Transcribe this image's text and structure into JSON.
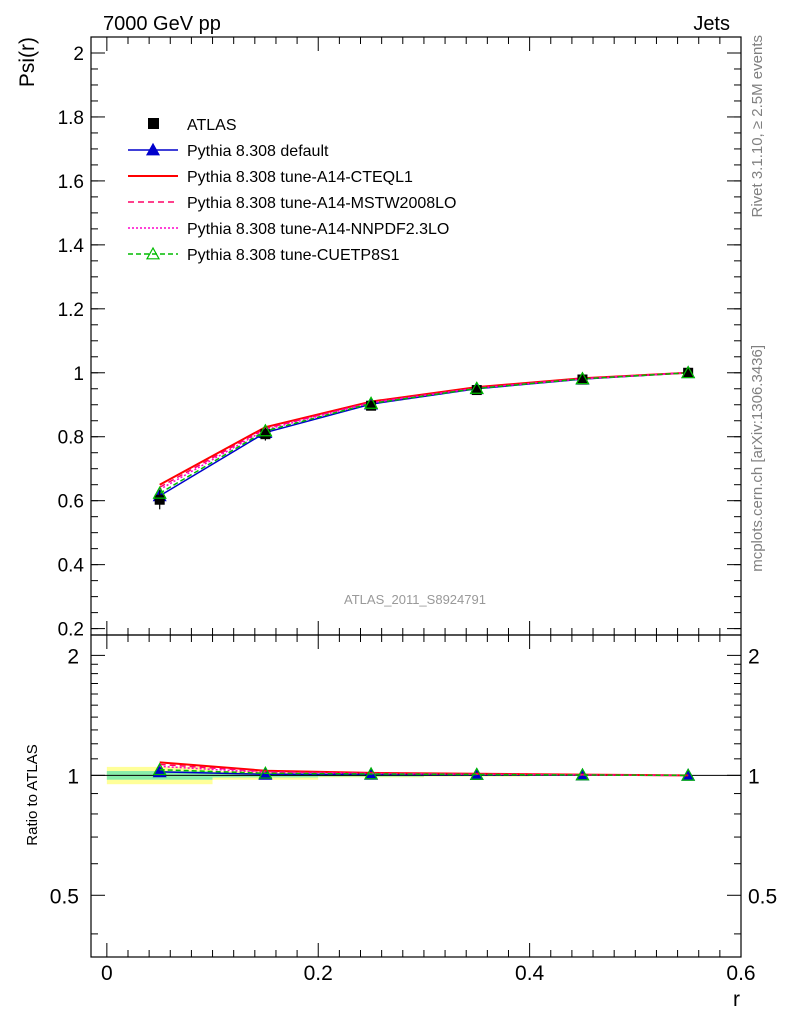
{
  "header": {
    "left_label": "7000 GeV pp",
    "right_label": "Jets"
  },
  "side_labels": {
    "rivet": "Rivet 3.1.10, ≥ 2.5M events",
    "mcplots": "mcplots.cern.ch [arXiv:1306.3436]"
  },
  "analysis_label": "ATLAS_2011_S8924791",
  "chart_data": [
    {
      "type": "line",
      "ylabel": "Psi(r)",
      "ylim": [
        0.18,
        2.05
      ],
      "yticks": [
        0.2,
        0.4,
        0.6,
        0.8,
        1,
        1.2,
        1.4,
        1.6,
        1.8,
        2
      ],
      "ytick_labels": [
        "0.2",
        "0.4",
        "0.6",
        "0.8",
        "1",
        "1.2",
        "1.4",
        "1.6",
        "1.8",
        "2"
      ],
      "xlim": [
        -0.015,
        0.6
      ],
      "legend_position": "top-left",
      "x": [
        0.05,
        0.15,
        0.25,
        0.35,
        0.45,
        0.55
      ],
      "data": {
        "name": "ATLAS",
        "values": [
          0.603,
          0.808,
          0.897,
          0.946,
          0.979,
          1.0
        ],
        "errors": [
          0.03,
          0.02,
          0.01,
          0.006,
          0.003,
          0.001
        ]
      },
      "series": [
        {
          "name": "Pythia 8.308 default",
          "values": [
            0.615,
            0.813,
            0.902,
            0.95,
            0.98,
            1.0
          ],
          "color": "#0000cc",
          "dash": "",
          "marker": "filled-triangle"
        },
        {
          "name": "Pythia 8.308 tune-A14-CTEQL1",
          "values": [
            0.65,
            0.83,
            0.91,
            0.955,
            0.983,
            1.0
          ],
          "color": "#ff0000",
          "dash": "",
          "marker": "none"
        },
        {
          "name": "Pythia 8.308 tune-A14-MSTW2008LO",
          "values": [
            0.642,
            0.826,
            0.908,
            0.953,
            0.982,
            1.0
          ],
          "color": "#ff0066",
          "dash": "6,4",
          "marker": "none"
        },
        {
          "name": "Pythia 8.308 tune-A14-NNPDF2.3LO",
          "values": [
            0.635,
            0.822,
            0.906,
            0.952,
            0.981,
            1.0
          ],
          "color": "#ff00cc",
          "dash": "2,2",
          "marker": "none"
        },
        {
          "name": "Pythia 8.308 tune-CUETP8S1",
          "values": [
            0.623,
            0.818,
            0.904,
            0.951,
            0.981,
            1.0
          ],
          "color": "#00bb00",
          "dash": "5,3",
          "marker": "open-triangle"
        }
      ]
    },
    {
      "type": "line",
      "ylabel": "Ratio to ATLAS",
      "xlabel": "r",
      "ylim": [
        0.35,
        2.25
      ],
      "yscale": "log",
      "yticks": [
        0.5,
        1,
        2
      ],
      "ytick_labels": [
        "0.5",
        "1",
        "2"
      ],
      "xlim": [
        -0.015,
        0.6
      ],
      "xticks": [
        0,
        0.2,
        0.4,
        0.6
      ],
      "xtick_labels": [
        "0",
        "0.2",
        "0.4",
        "0.6"
      ],
      "x": [
        0.05,
        0.15,
        0.25,
        0.35,
        0.45,
        0.55
      ],
      "bands": {
        "stat": [
          0.025,
          0.012,
          0.007,
          0.004,
          0.002,
          0.001
        ],
        "total": [
          0.05,
          0.025,
          0.012,
          0.007,
          0.003,
          0.001
        ]
      },
      "series": [
        {
          "name": "Pythia 8.308 default",
          "values": [
            1.02,
            1.006,
            1.006,
            1.004,
            1.001,
            1.0
          ],
          "color": "#0000cc",
          "dash": "",
          "marker": "filled-triangle"
        },
        {
          "name": "Pythia 8.308 tune-A14-CTEQL1",
          "values": [
            1.078,
            1.027,
            1.014,
            1.009,
            1.004,
            1.0
          ],
          "color": "#ff0000",
          "dash": "",
          "marker": "none"
        },
        {
          "name": "Pythia 8.308 tune-A14-MSTW2008LO",
          "values": [
            1.065,
            1.022,
            1.012,
            1.007,
            1.003,
            1.0
          ],
          "color": "#ff0066",
          "dash": "6,4",
          "marker": "none"
        },
        {
          "name": "Pythia 8.308 tune-A14-NNPDF2.3LO",
          "values": [
            1.053,
            1.017,
            1.01,
            1.006,
            1.002,
            1.0
          ],
          "color": "#ff00cc",
          "dash": "2,2",
          "marker": "none"
        },
        {
          "name": "Pythia 8.308 tune-CUETP8S1",
          "values": [
            1.033,
            1.012,
            1.008,
            1.005,
            1.002,
            1.0
          ],
          "color": "#00bb00",
          "dash": "5,3",
          "marker": "open-triangle"
        }
      ]
    }
  ]
}
